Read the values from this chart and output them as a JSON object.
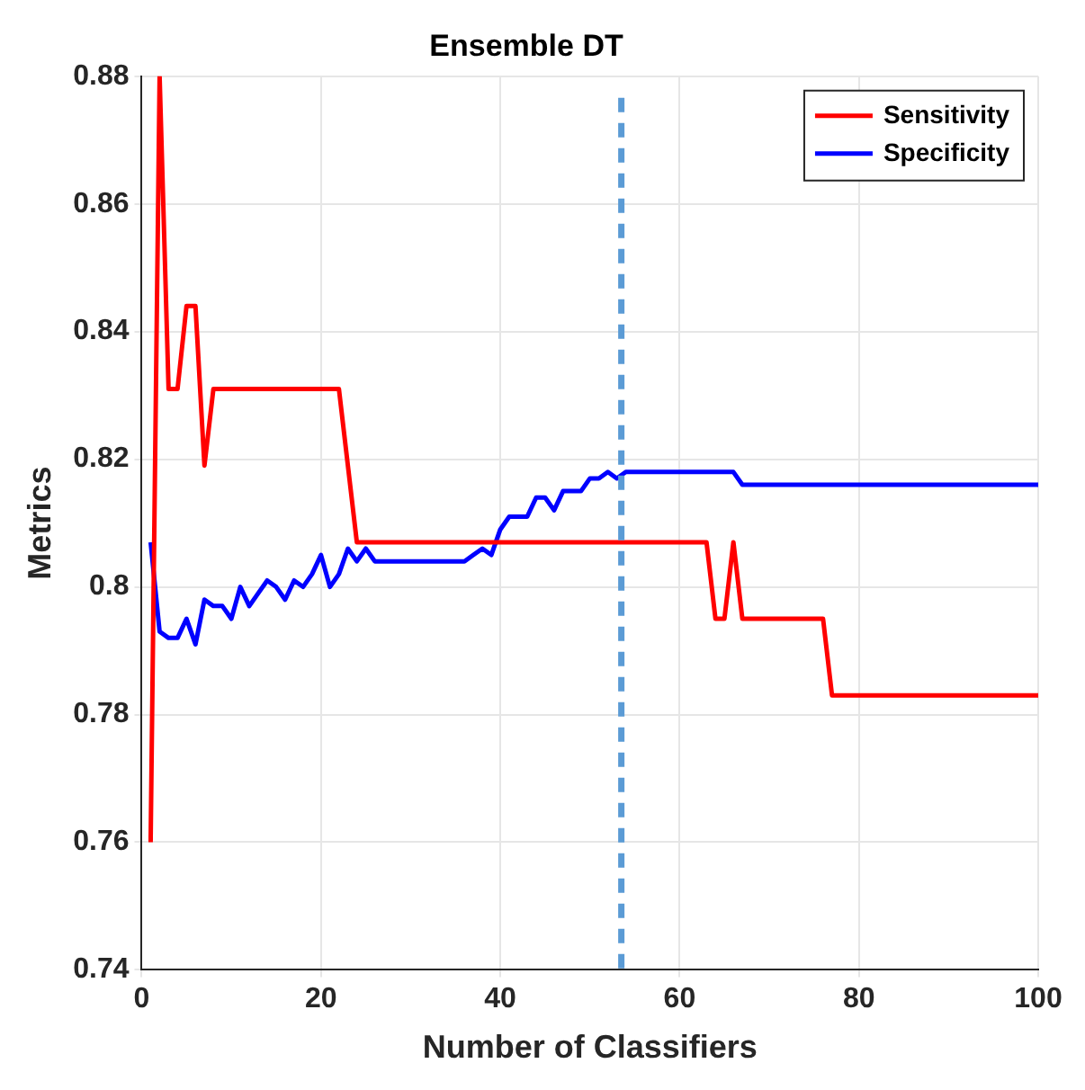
{
  "chart_data": {
    "type": "line",
    "title": "Ensemble DT",
    "xlabel": "Number of Classifiers",
    "ylabel": "Metrics",
    "x": [
      1,
      2,
      3,
      4,
      5,
      6,
      7,
      8,
      9,
      10,
      11,
      12,
      13,
      14,
      15,
      16,
      17,
      18,
      19,
      20,
      21,
      22,
      23,
      24,
      25,
      26,
      27,
      28,
      29,
      30,
      31,
      32,
      33,
      34,
      35,
      36,
      37,
      38,
      39,
      40,
      41,
      42,
      43,
      44,
      45,
      46,
      47,
      48,
      49,
      50,
      51,
      52,
      53,
      54,
      55,
      56,
      57,
      58,
      59,
      60,
      61,
      62,
      63,
      64,
      65,
      66,
      67,
      68,
      69,
      70,
      71,
      72,
      73,
      74,
      75,
      76,
      77,
      78,
      79,
      80,
      81,
      82,
      83,
      84,
      85,
      86,
      87,
      88,
      89,
      90,
      91,
      92,
      93,
      94,
      95,
      96,
      97,
      98,
      99,
      100
    ],
    "series": [
      {
        "name": "Sensitivity",
        "color": "#ff0000",
        "values": [
          0.76,
          0.88,
          0.831,
          0.831,
          0.844,
          0.844,
          0.819,
          0.831,
          0.831,
          0.831,
          0.831,
          0.831,
          0.831,
          0.831,
          0.831,
          0.831,
          0.831,
          0.831,
          0.831,
          0.831,
          0.831,
          0.831,
          0.819,
          0.807,
          0.807,
          0.807,
          0.807,
          0.807,
          0.807,
          0.807,
          0.807,
          0.807,
          0.807,
          0.807,
          0.807,
          0.807,
          0.807,
          0.807,
          0.807,
          0.807,
          0.807,
          0.807,
          0.807,
          0.807,
          0.807,
          0.807,
          0.807,
          0.807,
          0.807,
          0.807,
          0.807,
          0.807,
          0.807,
          0.807,
          0.807,
          0.807,
          0.807,
          0.807,
          0.807,
          0.807,
          0.807,
          0.807,
          0.807,
          0.795,
          0.795,
          0.807,
          0.795,
          0.795,
          0.795,
          0.795,
          0.795,
          0.795,
          0.795,
          0.795,
          0.795,
          0.795,
          0.783,
          0.783,
          0.783,
          0.783,
          0.783,
          0.783,
          0.783,
          0.783,
          0.783,
          0.783,
          0.783,
          0.783,
          0.783,
          0.783,
          0.783,
          0.783,
          0.783,
          0.783,
          0.783,
          0.783,
          0.783,
          0.783,
          0.783,
          0.783
        ]
      },
      {
        "name": "Specificity",
        "color": "#0000ff",
        "values": [
          0.807,
          0.793,
          0.792,
          0.792,
          0.795,
          0.791,
          0.798,
          0.797,
          0.797,
          0.795,
          0.8,
          0.797,
          0.799,
          0.801,
          0.8,
          0.798,
          0.801,
          0.8,
          0.802,
          0.805,
          0.8,
          0.802,
          0.806,
          0.804,
          0.806,
          0.804,
          0.804,
          0.804,
          0.804,
          0.804,
          0.804,
          0.804,
          0.804,
          0.804,
          0.804,
          0.804,
          0.805,
          0.806,
          0.805,
          0.809,
          0.811,
          0.811,
          0.811,
          0.814,
          0.814,
          0.812,
          0.815,
          0.815,
          0.815,
          0.817,
          0.817,
          0.818,
          0.817,
          0.818,
          0.818,
          0.818,
          0.818,
          0.818,
          0.818,
          0.818,
          0.818,
          0.818,
          0.818,
          0.818,
          0.818,
          0.818,
          0.816,
          0.816,
          0.816,
          0.816,
          0.816,
          0.816,
          0.816,
          0.816,
          0.816,
          0.816,
          0.816,
          0.816,
          0.816,
          0.816,
          0.816,
          0.816,
          0.816,
          0.816,
          0.816,
          0.816,
          0.816,
          0.816,
          0.816,
          0.816,
          0.816,
          0.816,
          0.816,
          0.816,
          0.816,
          0.816,
          0.816,
          0.816,
          0.816,
          0.816
        ]
      }
    ],
    "xlim": [
      0,
      100
    ],
    "xticks": [
      0,
      20,
      40,
      60,
      80,
      100
    ],
    "ylim": [
      0.74,
      0.88
    ],
    "yticks": [
      0.74,
      0.76,
      0.78,
      0.8,
      0.82,
      0.84,
      0.86,
      0.88
    ],
    "ref_lines": [
      {
        "axis": "x",
        "value": 53.5,
        "color": "#5b9bd5",
        "line_style": "dashed"
      }
    ],
    "grid": true,
    "legend": "top right",
    "marker": "none",
    "line_style": "solid"
  }
}
